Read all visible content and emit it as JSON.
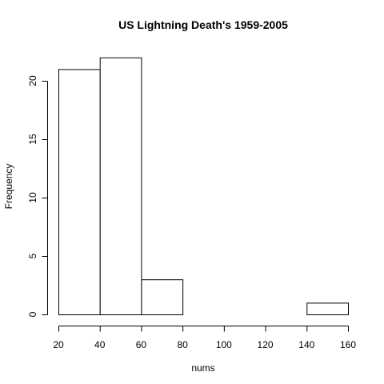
{
  "chart_data": {
    "type": "bar",
    "title": "US Lightning Death's 1959-2005",
    "xlabel": "nums",
    "ylabel": "Frequency",
    "bins": [
      {
        "x0": 20,
        "x1": 40,
        "count": 21
      },
      {
        "x0": 40,
        "x1": 60,
        "count": 22
      },
      {
        "x0": 60,
        "x1": 80,
        "count": 3
      },
      {
        "x0": 80,
        "x1": 100,
        "count": 0
      },
      {
        "x0": 100,
        "x1": 120,
        "count": 0
      },
      {
        "x0": 120,
        "x1": 140,
        "count": 0
      },
      {
        "x0": 140,
        "x1": 160,
        "count": 1
      }
    ],
    "xlim": [
      20,
      160
    ],
    "ylim": [
      0,
      22
    ],
    "x_ticks": [
      20,
      40,
      60,
      80,
      100,
      120,
      140,
      160
    ],
    "y_ticks": [
      0,
      5,
      10,
      15,
      20
    ],
    "grid": false,
    "colors": {
      "bar_fill": "#ffffff",
      "bar_stroke": "#000000"
    }
  }
}
